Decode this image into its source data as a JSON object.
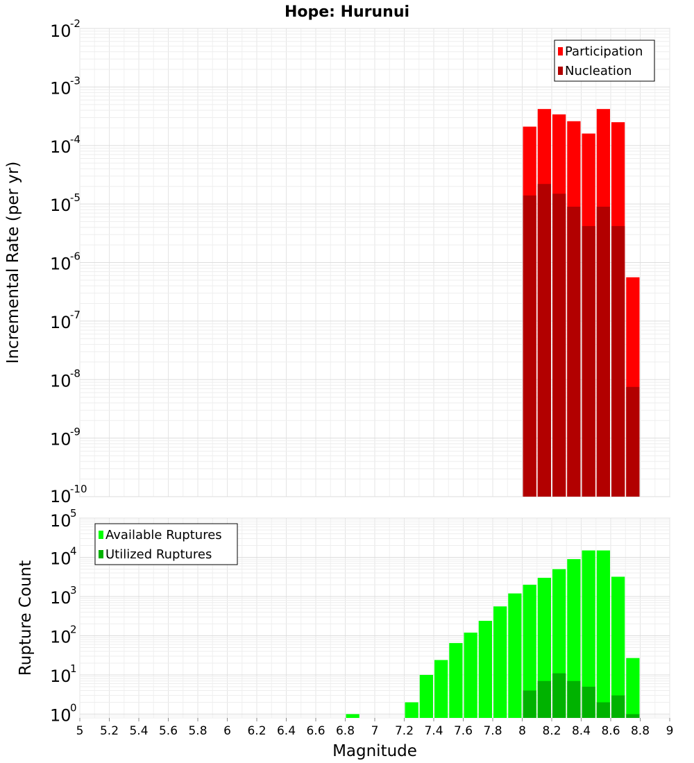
{
  "chart_data": [
    {
      "type": "bar",
      "title": "Hope: Hurunui",
      "xlabel": "Magnitude",
      "ylabel": "Incremental Rate (per yr)",
      "yscale": "log",
      "ylim": [
        1e-10,
        0.01
      ],
      "xlim": [
        5,
        9
      ],
      "bin_width": 0.1,
      "legend_position": "top-right",
      "series": [
        {
          "name": "Participation",
          "color": "#ff0000",
          "x": [
            8.05,
            8.15,
            8.25,
            8.35,
            8.45,
            8.55,
            8.65,
            8.75
          ],
          "values": [
            0.00021,
            0.00042,
            0.00034,
            0.00026,
            0.00016,
            0.00042,
            0.00025,
            5.6e-07
          ]
        },
        {
          "name": "Nucleation",
          "color": "#b20000",
          "x": [
            8.05,
            8.15,
            8.25,
            8.35,
            8.45,
            8.55,
            8.65,
            8.75
          ],
          "values": [
            1.4e-05,
            2.2e-05,
            1.5e-05,
            9e-06,
            4.2e-06,
            9e-06,
            4.2e-06,
            7.5e-09
          ]
        }
      ]
    },
    {
      "type": "bar",
      "title": "",
      "xlabel": "Magnitude",
      "ylabel": "Rupture Count",
      "yscale": "log",
      "ylim": [
        0.8,
        100000.0
      ],
      "xlim": [
        5,
        9
      ],
      "bin_width": 0.1,
      "legend_position": "top-left",
      "series": [
        {
          "name": "Available Ruptures",
          "color": "#00ff00",
          "x": [
            6.85,
            7.25,
            7.35,
            7.45,
            7.55,
            7.65,
            7.75,
            7.85,
            7.95,
            8.05,
            8.15,
            8.25,
            8.35,
            8.45,
            8.55,
            8.65,
            8.75
          ],
          "values": [
            1,
            2,
            10,
            24,
            65,
            120,
            240,
            560,
            1200,
            2000,
            3000,
            5000,
            9000,
            15000,
            15000,
            3200,
            27
          ]
        },
        {
          "name": "Utilized Ruptures",
          "color": "#00b200",
          "x": [
            8.05,
            8.15,
            8.25,
            8.35,
            8.45,
            8.55,
            8.65,
            8.75
          ],
          "values": [
            4,
            7,
            11,
            7,
            5,
            2,
            3,
            1
          ]
        }
      ]
    }
  ],
  "x_ticks": [
    "5",
    "5.2",
    "5.4",
    "5.6",
    "5.8",
    "6",
    "6.2",
    "6.4",
    "6.6",
    "6.8",
    "7",
    "7.2",
    "7.4",
    "7.6",
    "7.8",
    "8",
    "8.2",
    "8.4",
    "8.6",
    "8.8",
    "9"
  ],
  "top_y_ticks": [
    {
      "base": "10",
      "exp": "-10"
    },
    {
      "base": "10",
      "exp": "-9"
    },
    {
      "base": "10",
      "exp": "-8"
    },
    {
      "base": "10",
      "exp": "-7"
    },
    {
      "base": "10",
      "exp": "-6"
    },
    {
      "base": "10",
      "exp": "-5"
    },
    {
      "base": "10",
      "exp": "-4"
    },
    {
      "base": "10",
      "exp": "-3"
    },
    {
      "base": "10",
      "exp": "-2"
    }
  ],
  "bottom_y_ticks": [
    {
      "base": "10",
      "exp": "0"
    },
    {
      "base": "10",
      "exp": "1"
    },
    {
      "base": "10",
      "exp": "2"
    },
    {
      "base": "10",
      "exp": "3"
    },
    {
      "base": "10",
      "exp": "4"
    },
    {
      "base": "10",
      "exp": "5"
    }
  ]
}
